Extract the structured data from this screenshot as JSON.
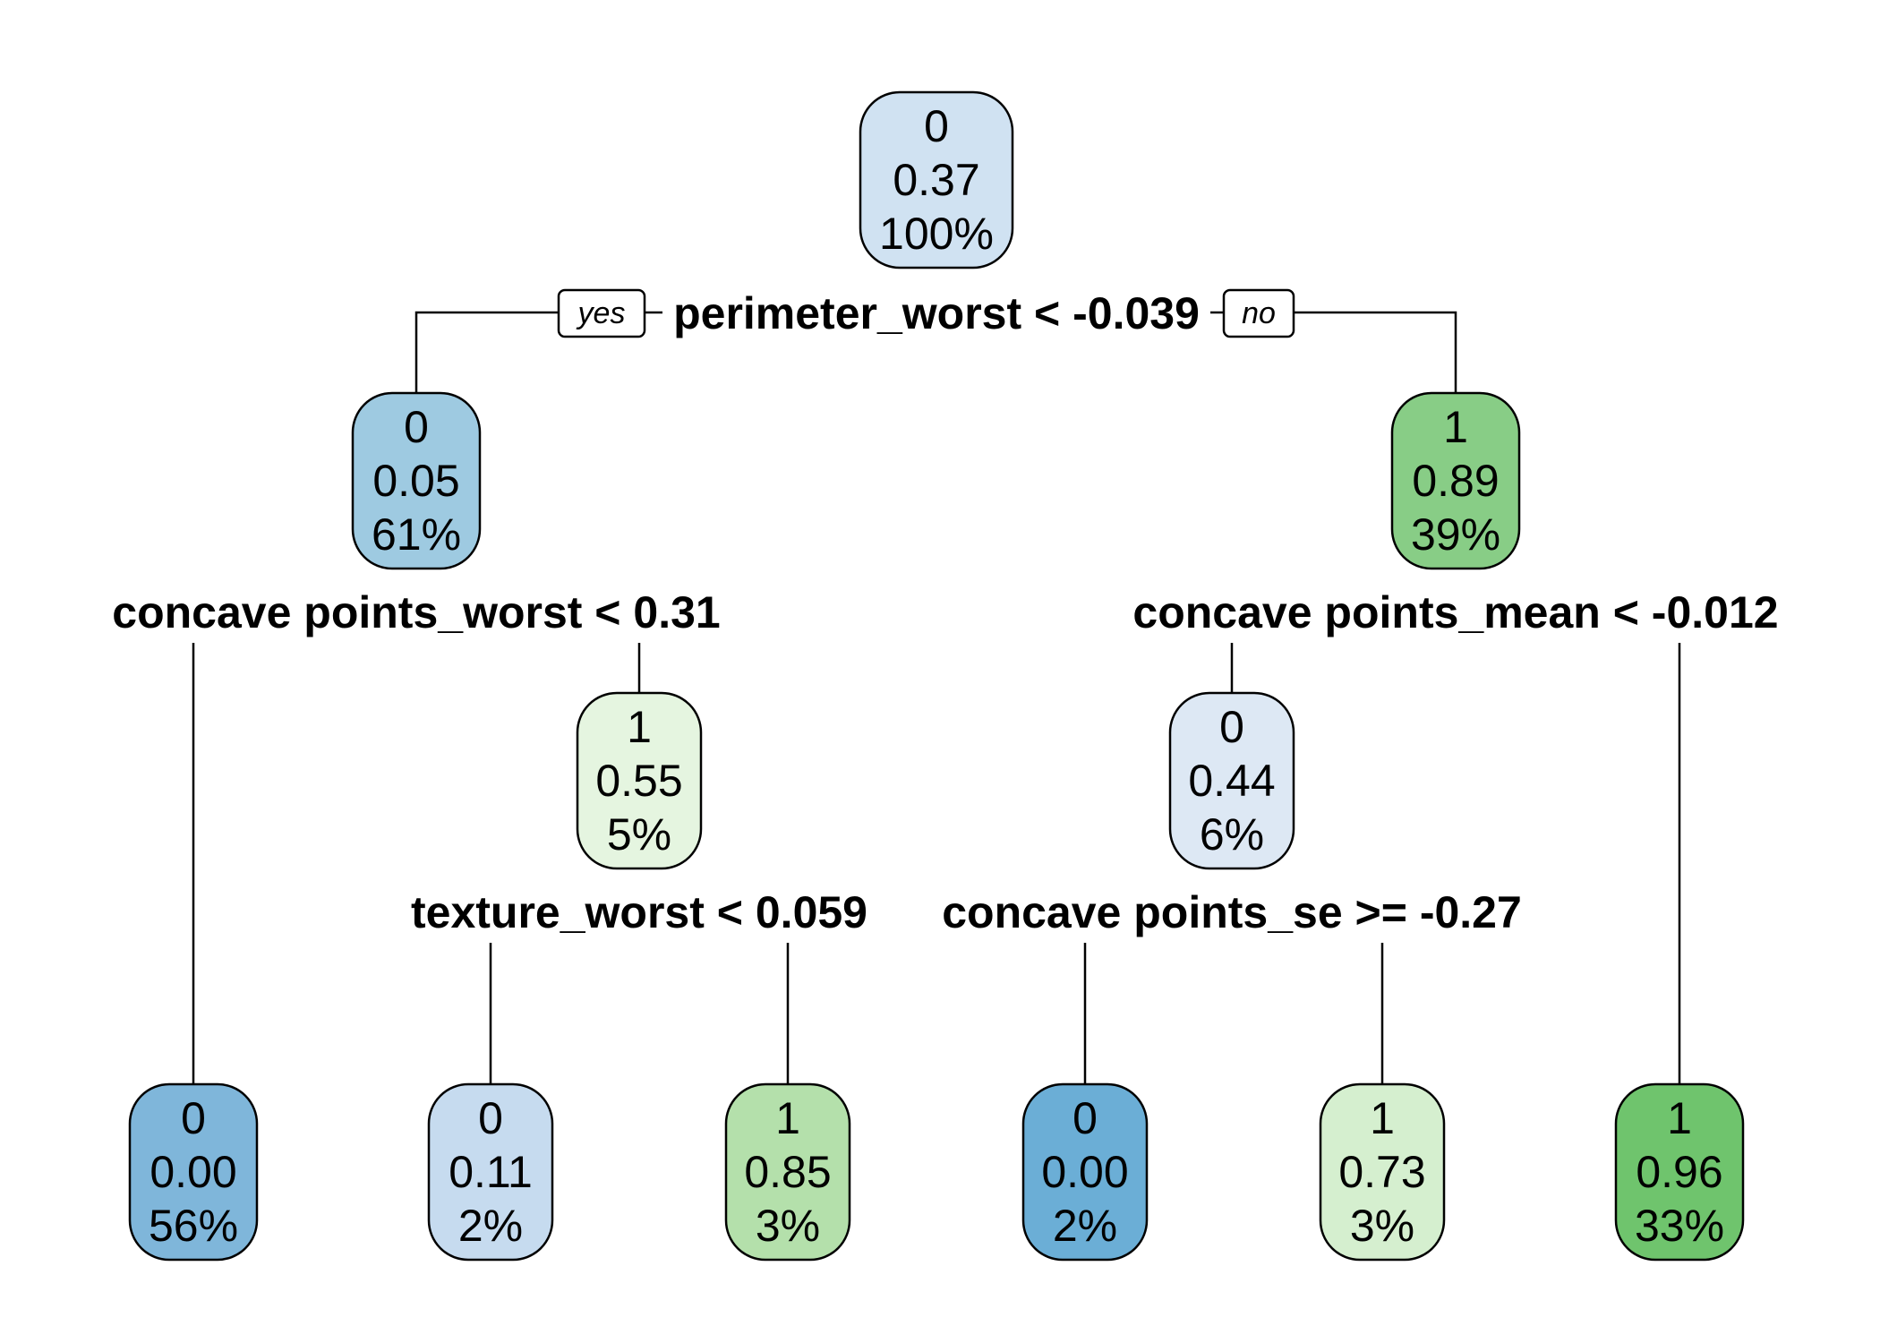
{
  "tree": {
    "nodes": [
      {
        "id": "n1",
        "class": "0",
        "prob": "0.37",
        "pct": "100%",
        "fill": "#d0e2f2"
      },
      {
        "id": "n2",
        "class": "0",
        "prob": "0.05",
        "pct": "61%",
        "fill": "#9ecae1"
      },
      {
        "id": "n3",
        "class": "1",
        "prob": "0.89",
        "pct": "39%",
        "fill": "#88cd86"
      },
      {
        "id": "n4",
        "class": "1",
        "prob": "0.55",
        "pct": "5%",
        "fill": "#e5f5e0"
      },
      {
        "id": "n5",
        "class": "0",
        "prob": "0.44",
        "pct": "6%",
        "fill": "#dde8f4"
      },
      {
        "id": "l1",
        "class": "0",
        "prob": "0.00",
        "pct": "56%",
        "fill": "#7fb6da"
      },
      {
        "id": "l2",
        "class": "0",
        "prob": "0.11",
        "pct": "2%",
        "fill": "#c6dbef"
      },
      {
        "id": "l3",
        "class": "1",
        "prob": "0.85",
        "pct": "3%",
        "fill": "#b4e0ab"
      },
      {
        "id": "l4",
        "class": "0",
        "prob": "0.00",
        "pct": "2%",
        "fill": "#6baed6"
      },
      {
        "id": "l5",
        "class": "1",
        "prob": "0.73",
        "pct": "3%",
        "fill": "#d5efcf"
      },
      {
        "id": "l6",
        "class": "1",
        "prob": "0.96",
        "pct": "33%",
        "fill": "#6fc46d"
      }
    ],
    "splits": [
      {
        "id": "s1",
        "label": "perimeter_worst < -0.039"
      },
      {
        "id": "s2",
        "label": "concave points_worst < 0.31"
      },
      {
        "id": "s3",
        "label": "concave points_mean < -0.012"
      },
      {
        "id": "s4",
        "label": "texture_worst < 0.059"
      },
      {
        "id": "s5",
        "label": "concave points_se >= -0.27"
      }
    ],
    "branch_labels": {
      "yes": "yes",
      "no": "no"
    }
  }
}
